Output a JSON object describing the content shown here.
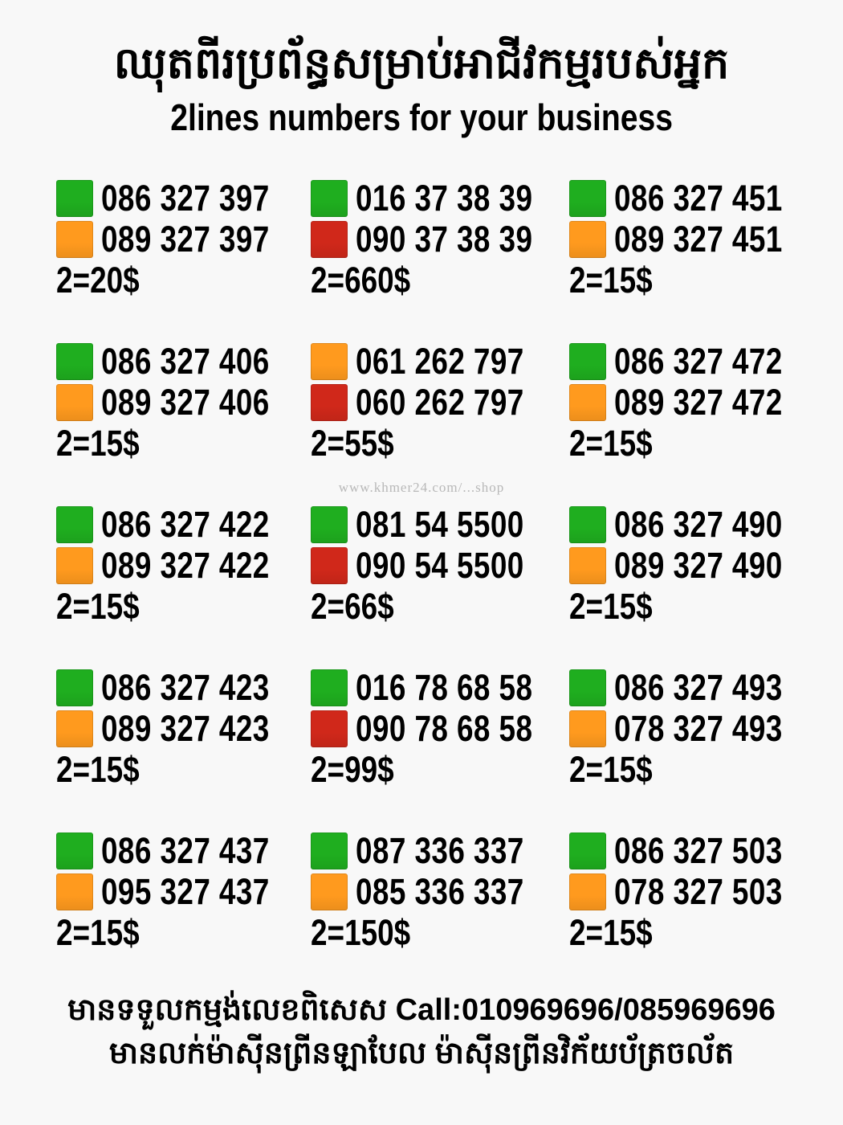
{
  "header": {
    "title_khmer": "ឈុតពីរប្រព័ន្ធសម្រាប់អាជីវកម្មរបស់អ្នក",
    "title_english": "2lines numbers for your business"
  },
  "colors": {
    "green": "#1fae1f",
    "orange": "#ff9a1e",
    "red": "#d0281a"
  },
  "offers": [
    {
      "lines": [
        {
          "number": "086 327 397",
          "color": "green"
        },
        {
          "number": "089 327 397",
          "color": "orange"
        }
      ],
      "price": "2=20$"
    },
    {
      "lines": [
        {
          "number": "016 37 38 39",
          "color": "green"
        },
        {
          "number": "090 37 38 39",
          "color": "red"
        }
      ],
      "price": "2=660$"
    },
    {
      "lines": [
        {
          "number": "086 327 451",
          "color": "green"
        },
        {
          "number": "089 327 451",
          "color": "orange"
        }
      ],
      "price": "2=15$"
    },
    {
      "lines": [
        {
          "number": "086 327 406",
          "color": "green"
        },
        {
          "number": "089 327 406",
          "color": "orange"
        }
      ],
      "price": "2=15$"
    },
    {
      "lines": [
        {
          "number": "061 262 797",
          "color": "orange"
        },
        {
          "number": "060 262 797",
          "color": "red"
        }
      ],
      "price": "2=55$"
    },
    {
      "lines": [
        {
          "number": "086 327 472",
          "color": "green"
        },
        {
          "number": "089 327 472",
          "color": "orange"
        }
      ],
      "price": "2=15$"
    },
    {
      "lines": [
        {
          "number": "086 327 422",
          "color": "green"
        },
        {
          "number": "089 327 422",
          "color": "orange"
        }
      ],
      "price": "2=15$"
    },
    {
      "lines": [
        {
          "number": "081 54 5500",
          "color": "green"
        },
        {
          "number": "090 54 5500",
          "color": "red"
        }
      ],
      "price": "2=66$"
    },
    {
      "lines": [
        {
          "number": "086 327 490",
          "color": "green"
        },
        {
          "number": "089 327 490",
          "color": "orange"
        }
      ],
      "price": "2=15$"
    },
    {
      "lines": [
        {
          "number": "086 327 423",
          "color": "green"
        },
        {
          "number": "089 327 423",
          "color": "orange"
        }
      ],
      "price": "2=15$"
    },
    {
      "lines": [
        {
          "number": "016 78 68 58",
          "color": "green"
        },
        {
          "number": "090 78 68 58",
          "color": "red"
        }
      ],
      "price": "2=99$"
    },
    {
      "lines": [
        {
          "number": "086 327 493",
          "color": "green"
        },
        {
          "number": "078 327 493",
          "color": "orange"
        }
      ],
      "price": "2=15$"
    },
    {
      "lines": [
        {
          "number": "086 327 437",
          "color": "green"
        },
        {
          "number": "095 327 437",
          "color": "orange"
        }
      ],
      "price": "2=15$"
    },
    {
      "lines": [
        {
          "number": "087 336 337",
          "color": "green"
        },
        {
          "number": "085 336 337",
          "color": "orange"
        }
      ],
      "price": "2=150$"
    },
    {
      "lines": [
        {
          "number": "086 327 503",
          "color": "green"
        },
        {
          "number": "078 327 503",
          "color": "orange"
        }
      ],
      "price": "2=15$"
    }
  ],
  "watermark": "www.khmer24.com/...shop",
  "footer": {
    "line1": "មានទទួលកម្មង់លេខពិសេស Call:010969696/085969696",
    "line2": "មានលក់ម៉ាស៊ីនព្រីនឡាបែល ម៉ាស៊ីនព្រីនវិក័យប័ត្រចល័ត"
  }
}
